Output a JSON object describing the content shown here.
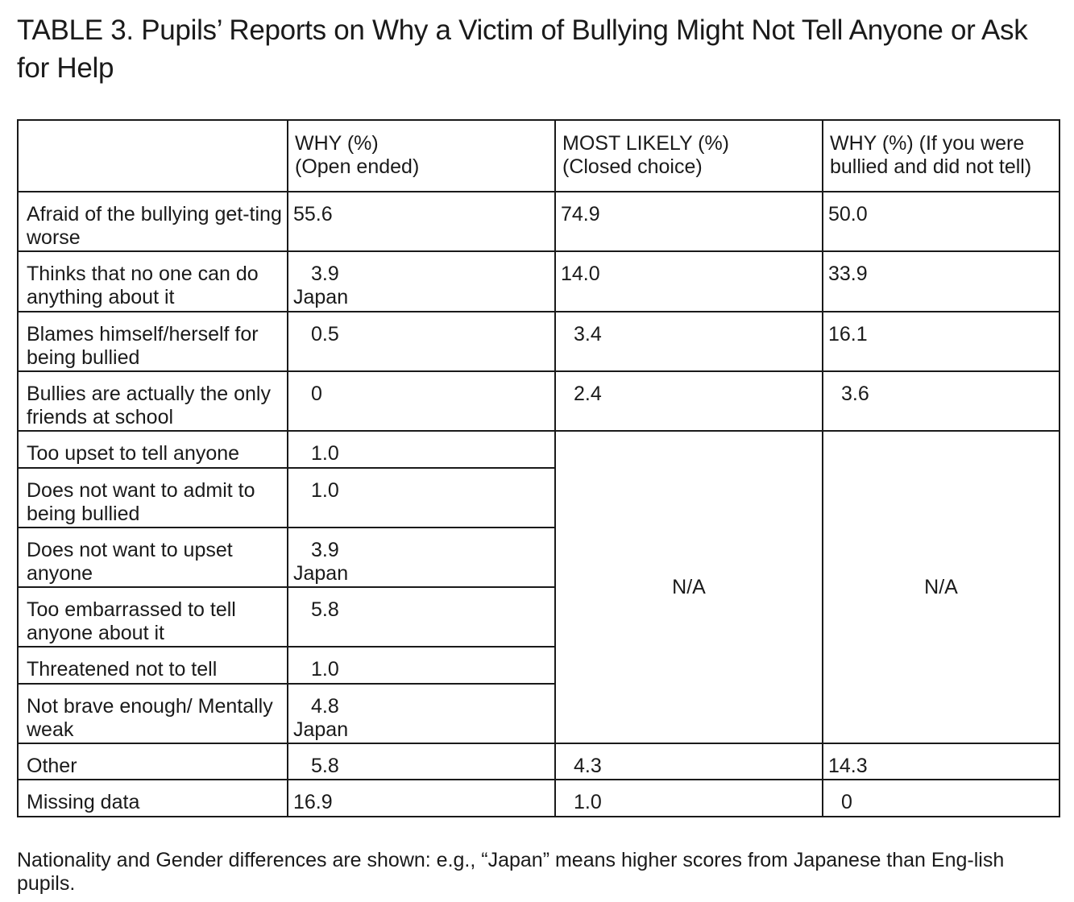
{
  "title": "TABLE 3. Pupils’ Reports on Why a Victim of Bullying Might Not Tell Anyone or Ask for Help",
  "headers": {
    "col1": "",
    "col2_line1": "WHY (%)",
    "col2_line2": "(Open ended)",
    "col3_line1": "MOST LIKELY (%)",
    "col3_line2": "(Closed choice)",
    "col4_line1": "WHY (%) (If you were",
    "col4_line2": "bullied and did not tell)"
  },
  "rows": [
    {
      "label": "Afraid of the bullying get-ting worse",
      "why": "55.6",
      "why_note": "",
      "likely": "74.9",
      "bullied": "50.0"
    },
    {
      "label": "Thinks that no one can do anything about it",
      "why": "3.9",
      "why_note": "Japan",
      "likely": "14.0",
      "bullied": "33.9"
    },
    {
      "label": "Blames himself/herself for being bullied",
      "why": "0.5",
      "why_note": "",
      "likely": "3.4",
      "bullied": "16.1"
    },
    {
      "label": "Bullies are actually the only friends at school",
      "why": "0",
      "why_note": "",
      "likely": "2.4",
      "bullied": "3.6"
    },
    {
      "label": "Too upset to tell anyone",
      "why": "1.0",
      "why_note": ""
    },
    {
      "label": "Does not want to admit to being bullied",
      "why": "1.0",
      "why_note": ""
    },
    {
      "label": "Does not want to upset anyone",
      "why": "3.9",
      "why_note": "Japan"
    },
    {
      "label": "Too embarrassed to tell anyone about it",
      "why": "5.8",
      "why_note": ""
    },
    {
      "label": "Threatened not to tell",
      "why": "1.0",
      "why_note": ""
    },
    {
      "label": "Not brave enough/ Mentally weak",
      "why": "4.8",
      "why_note": "Japan"
    },
    {
      "label": "Other",
      "why": "5.8",
      "why_note": "",
      "likely": "4.3",
      "bullied": "14.3"
    },
    {
      "label": "Missing data",
      "why": "16.9",
      "why_note": "",
      "likely": "1.0",
      "bullied": "0"
    }
  ],
  "na_likely": "N/A",
  "na_bullied": "N/A",
  "footnote": "Nationality and Gender differences are shown: e.g., “Japan” means higher scores from Japanese than Eng-lish pupils."
}
